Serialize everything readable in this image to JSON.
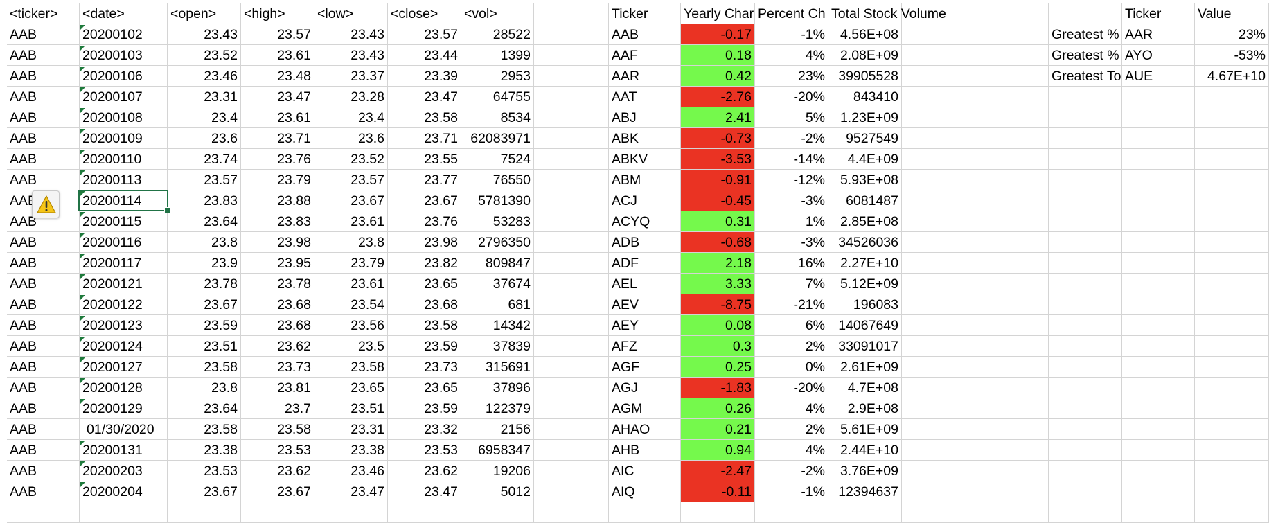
{
  "raw_headers": [
    "<ticker>",
    "<date>",
    "<open>",
    "<high>",
    "<low>",
    "<close>",
    "<vol>"
  ],
  "raw_rows": [
    [
      "AAB",
      "20200102",
      "23.43",
      "23.57",
      "23.43",
      "23.57",
      "28522"
    ],
    [
      "AAB",
      "20200103",
      "23.52",
      "23.61",
      "23.43",
      "23.44",
      "1399"
    ],
    [
      "AAB",
      "20200106",
      "23.46",
      "23.48",
      "23.37",
      "23.39",
      "2953"
    ],
    [
      "AAB",
      "20200107",
      "23.31",
      "23.47",
      "23.28",
      "23.47",
      "64755"
    ],
    [
      "AAB",
      "20200108",
      "23.4",
      "23.61",
      "23.4",
      "23.58",
      "8534"
    ],
    [
      "AAB",
      "20200109",
      "23.6",
      "23.71",
      "23.6",
      "23.71",
      "62083971"
    ],
    [
      "AAB",
      "20200110",
      "23.74",
      "23.76",
      "23.52",
      "23.55",
      "7524"
    ],
    [
      "AAB",
      "20200113",
      "23.57",
      "23.79",
      "23.57",
      "23.77",
      "76550"
    ],
    [
      "AAB",
      "20200114",
      "23.83",
      "23.88",
      "23.67",
      "23.67",
      "5781390"
    ],
    [
      "AAB",
      "20200115",
      "23.64",
      "23.83",
      "23.61",
      "23.76",
      "53283"
    ],
    [
      "AAB",
      "20200116",
      "23.8",
      "23.98",
      "23.8",
      "23.98",
      "2796350"
    ],
    [
      "AAB",
      "20200117",
      "23.9",
      "23.95",
      "23.79",
      "23.82",
      "809847"
    ],
    [
      "AAB",
      "20200121",
      "23.78",
      "23.78",
      "23.61",
      "23.65",
      "37674"
    ],
    [
      "AAB",
      "20200122",
      "23.67",
      "23.68",
      "23.54",
      "23.68",
      "681"
    ],
    [
      "AAB",
      "20200123",
      "23.59",
      "23.68",
      "23.56",
      "23.58",
      "14342"
    ],
    [
      "AAB",
      "20200124",
      "23.51",
      "23.62",
      "23.5",
      "23.59",
      "37839"
    ],
    [
      "AAB",
      "20200127",
      "23.58",
      "23.73",
      "23.58",
      "23.73",
      "315691"
    ],
    [
      "AAB",
      "20200128",
      "23.8",
      "23.81",
      "23.65",
      "23.65",
      "37896"
    ],
    [
      "AAB",
      "20200129",
      "23.64",
      "23.7",
      "23.51",
      "23.59",
      "122379"
    ],
    [
      "AAB",
      "01/30/2020",
      "23.58",
      "23.58",
      "23.31",
      "23.32",
      "2156"
    ],
    [
      "AAB",
      "20200131",
      "23.38",
      "23.53",
      "23.38",
      "23.53",
      "6958347"
    ],
    [
      "AAB",
      "20200203",
      "23.53",
      "23.62",
      "23.46",
      "23.62",
      "19206"
    ],
    [
      "AAB",
      "20200204",
      "23.67",
      "23.67",
      "23.47",
      "23.47",
      "5012"
    ]
  ],
  "summary_headers": [
    "Ticker",
    "Yearly Char",
    "Percent Ch",
    "Total Stock Volume"
  ],
  "summary_rows": [
    [
      "AAB",
      "-0.17",
      "-1%",
      "4.56E+08"
    ],
    [
      "AAF",
      "0.18",
      "4%",
      "2.08E+09"
    ],
    [
      "AAR",
      "0.42",
      "23%",
      "39905528"
    ],
    [
      "AAT",
      "-2.76",
      "-20%",
      "843410"
    ],
    [
      "ABJ",
      "2.41",
      "5%",
      "1.23E+09"
    ],
    [
      "ABK",
      "-0.73",
      "-2%",
      "9527549"
    ],
    [
      "ABKV",
      "-3.53",
      "-14%",
      "4.4E+09"
    ],
    [
      "ABM",
      "-0.91",
      "-12%",
      "5.93E+08"
    ],
    [
      "ACJ",
      "-0.45",
      "-3%",
      "6081487"
    ],
    [
      "ACYQ",
      "0.31",
      "1%",
      "2.85E+08"
    ],
    [
      "ADB",
      "-0.68",
      "-3%",
      "34526036"
    ],
    [
      "ADF",
      "2.18",
      "16%",
      "2.27E+10"
    ],
    [
      "AEL",
      "3.33",
      "7%",
      "5.12E+09"
    ],
    [
      "AEV",
      "-8.75",
      "-21%",
      "196083"
    ],
    [
      "AEY",
      "0.08",
      "6%",
      "14067649"
    ],
    [
      "AFZ",
      "0.3",
      "2%",
      "33091017"
    ],
    [
      "AGF",
      "0.25",
      "0%",
      "2.61E+09"
    ],
    [
      "AGJ",
      "-1.83",
      "-20%",
      "4.7E+08"
    ],
    [
      "AGM",
      "0.26",
      "4%",
      "2.9E+08"
    ],
    [
      "AHAO",
      "0.21",
      "2%",
      "5.61E+09"
    ],
    [
      "AHB",
      "0.94",
      "4%",
      "2.44E+10"
    ],
    [
      "AIC",
      "-2.47",
      "-2%",
      "3.76E+09"
    ],
    [
      "AIQ",
      "-0.11",
      "-1%",
      "12394637"
    ]
  ],
  "greatest_headers": [
    "",
    "Ticker",
    "Value"
  ],
  "greatest_rows": [
    [
      "Greatest %",
      "AAR",
      "23%"
    ],
    [
      "Greatest %",
      "AYO",
      "-53%"
    ],
    [
      "Greatest To",
      "AUE",
      "4.67E+10"
    ]
  ],
  "colors": {
    "negative_fill": "#ea3323",
    "positive_fill": "#75f94c",
    "gridline": "#d4d4d4",
    "selection": "#217346",
    "text_marker": "#1f7a3c"
  },
  "icons": {
    "error_indicator": "warning-icon"
  }
}
